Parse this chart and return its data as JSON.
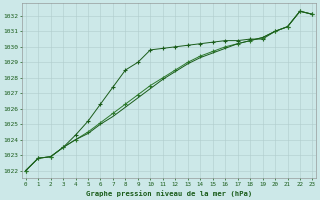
{
  "title": "Graphe pression niveau de la mer (hPa)",
  "background_color": "#cce8e8",
  "grid_color": "#b0cccc",
  "line_color_dark": "#1a5c1a",
  "line_color_mid": "#2d7a2d",
  "x_ticks": [
    0,
    1,
    2,
    3,
    4,
    5,
    6,
    7,
    8,
    9,
    10,
    11,
    12,
    13,
    14,
    15,
    16,
    17,
    18,
    19,
    20,
    21,
    22,
    23
  ],
  "ylim": [
    1021.5,
    1032.8
  ],
  "xlim": [
    -0.3,
    23.3
  ],
  "yticks": [
    1022,
    1023,
    1024,
    1025,
    1026,
    1027,
    1028,
    1029,
    1030,
    1031,
    1032
  ],
  "series_upper": [
    1022.0,
    1022.8,
    1022.9,
    1023.5,
    1024.3,
    1025.2,
    1026.3,
    1027.4,
    1028.5,
    1029.0,
    1029.8,
    1029.9,
    1030.0,
    1030.1,
    1030.2,
    1030.3,
    1030.4,
    1030.4,
    1030.5,
    1030.5,
    1031.0,
    1031.3,
    1032.3,
    1032.1
  ],
  "series_linear1": [
    1022.0,
    1022.8,
    1022.9,
    1023.5,
    1024.0,
    1024.5,
    1025.1,
    1025.7,
    1026.3,
    1026.9,
    1027.5,
    1028.0,
    1028.5,
    1029.0,
    1029.4,
    1029.7,
    1030.0,
    1030.2,
    1030.4,
    1030.6,
    1031.0,
    1031.3,
    1032.3,
    1032.1
  ],
  "series_linear2": [
    1022.0,
    1022.8,
    1022.9,
    1023.5,
    1024.0,
    1024.4,
    1025.0,
    1025.5,
    1026.1,
    1026.7,
    1027.3,
    1027.9,
    1028.4,
    1028.9,
    1029.3,
    1029.6,
    1029.9,
    1030.2,
    1030.4,
    1030.6,
    1031.0,
    1031.3,
    1032.3,
    1032.1
  ]
}
